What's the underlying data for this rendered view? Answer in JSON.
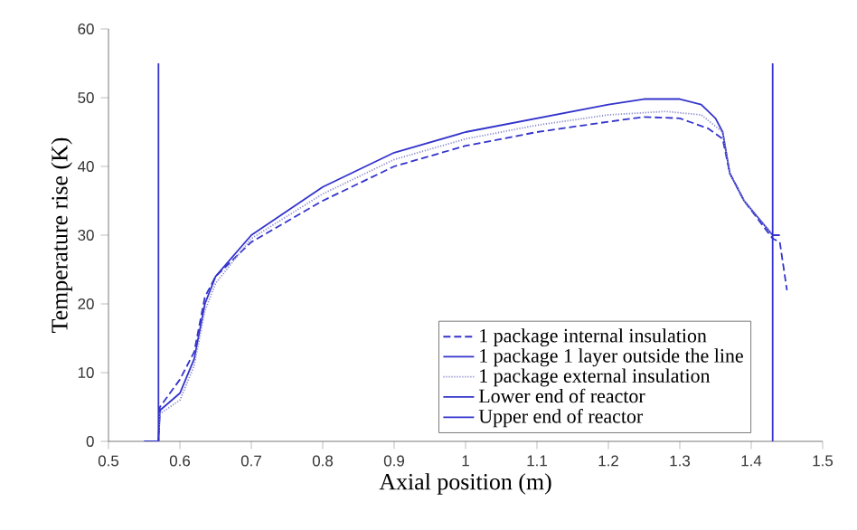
{
  "chart_data": {
    "type": "line",
    "xlabel": "Axial position (m)",
    "ylabel": "Temperature rise (K)",
    "xlim": [
      0.5,
      1.5
    ],
    "xticks": [
      0.5,
      0.6,
      0.7,
      0.8,
      0.9,
      1,
      1.1,
      1.2,
      1.3,
      1.4,
      1.5
    ],
    "ylim": [
      0,
      60
    ],
    "yticks": [
      0,
      10,
      20,
      30,
      40,
      50,
      60
    ],
    "grid": false,
    "legend": "bottom right",
    "marker": "none",
    "series": [
      {
        "name": "1 package internal insulation",
        "color": "#3333cc",
        "line_style": "dashed",
        "x": [
          0.55,
          0.57,
          0.572,
          0.6,
          0.62,
          0.635,
          0.65,
          0.7,
          0.8,
          0.9,
          1.0,
          1.1,
          1.2,
          1.25,
          1.3,
          1.34,
          1.36,
          1.37,
          1.39,
          1.43,
          1.44,
          1.45
        ],
        "values": [
          0,
          0,
          5,
          9,
          13,
          21,
          24,
          29,
          35,
          40,
          43,
          45,
          46.5,
          47.2,
          47,
          45.5,
          44,
          39,
          35,
          29.5,
          29,
          22
        ]
      },
      {
        "name": "1 package 1 layer outside the line",
        "color": "#3333cc",
        "line_style": "solid",
        "x": [
          0.55,
          0.57,
          0.572,
          0.6,
          0.62,
          0.635,
          0.65,
          0.7,
          0.8,
          0.9,
          1.0,
          1.05,
          1.1,
          1.2,
          1.25,
          1.3,
          1.33,
          1.35,
          1.36,
          1.37,
          1.39,
          1.43,
          1.44
        ],
        "values": [
          0,
          0,
          4.5,
          7,
          12,
          20,
          24,
          30,
          37,
          42,
          45,
          46,
          47,
          49,
          49.8,
          49.8,
          49,
          47,
          45,
          39,
          35,
          30,
          30
        ]
      },
      {
        "name": "1 package external insulation",
        "color": "#8888cc",
        "line_style": "dotted",
        "x": [
          0.57,
          0.572,
          0.6,
          0.62,
          0.635,
          0.65,
          0.7,
          0.8,
          0.9,
          1.0,
          1.1,
          1.2,
          1.28,
          1.33,
          1.36,
          1.37,
          1.39,
          1.43
        ],
        "values": [
          0,
          4,
          6,
          11,
          19,
          23,
          29.5,
          36,
          41,
          44,
          46,
          47.5,
          48,
          47.5,
          45,
          39,
          35,
          30
        ]
      },
      {
        "name": "Lower end of reactor",
        "color": "#3333cc",
        "line_style": "solid",
        "x": [
          0.57,
          0.57
        ],
        "values": [
          0,
          55
        ]
      },
      {
        "name": "Upper end of reactor",
        "color": "#3333cc",
        "line_style": "solid",
        "x": [
          1.43,
          1.43
        ],
        "values": [
          0,
          55
        ]
      }
    ]
  }
}
